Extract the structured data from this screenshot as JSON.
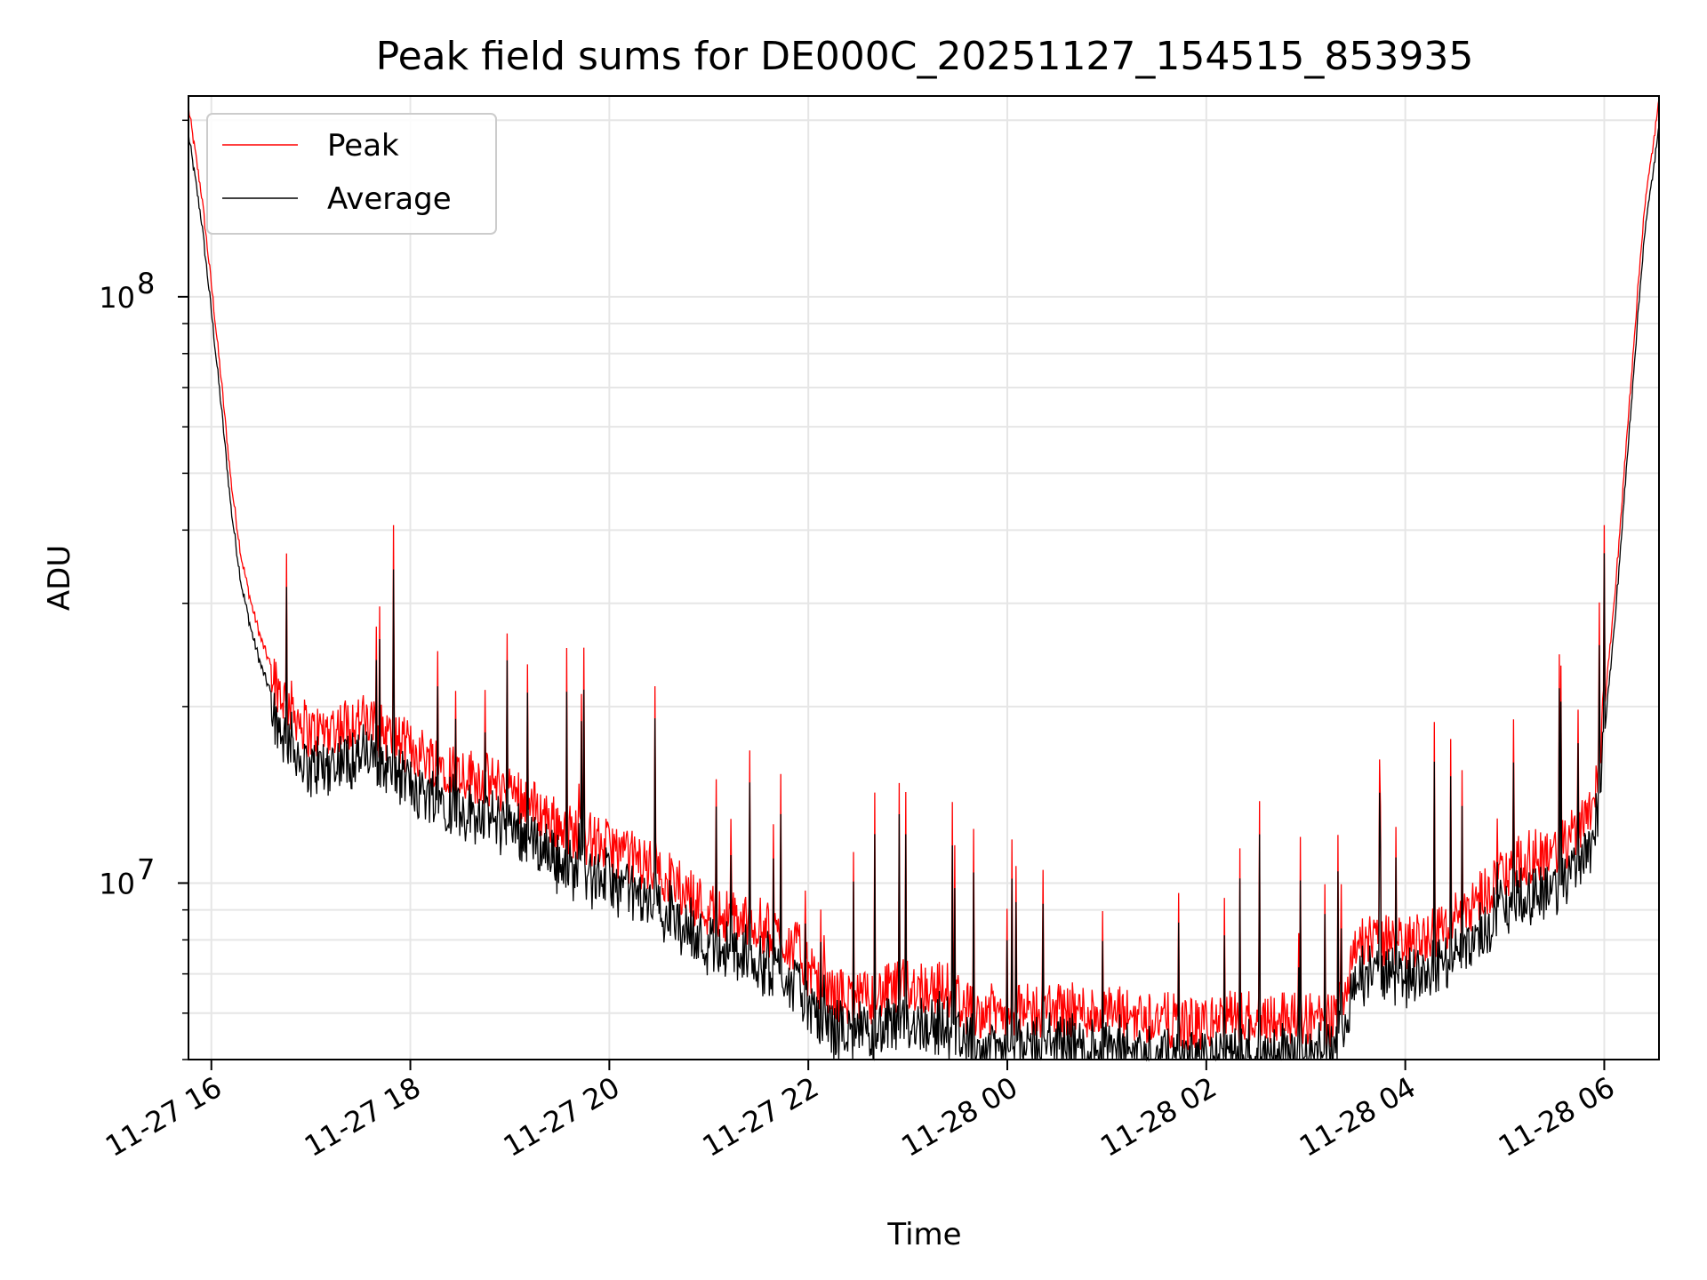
{
  "chart_data": {
    "type": "line",
    "title": "Peak field sums for DE000C_20251127_154515_853935",
    "xlabel": "Time",
    "ylabel": "ADU",
    "yscale": "log",
    "ylim": [
      5000000,
      220000000
    ],
    "x_range_hours": [
      15.77,
      30.55
    ],
    "grid": true,
    "legend_position": "upper-left",
    "colors": {
      "peak": "#ff0000",
      "average": "#000000",
      "grid": "#e6e6e6"
    },
    "x_ticks": [
      {
        "hour": 16,
        "label": "11-27 16"
      },
      {
        "hour": 18,
        "label": "11-27 18"
      },
      {
        "hour": 20,
        "label": "11-27 20"
      },
      {
        "hour": 22,
        "label": "11-27 22"
      },
      {
        "hour": 24,
        "label": "11-28 00"
      },
      {
        "hour": 26,
        "label": "11-28 02"
      },
      {
        "hour": 28,
        "label": "11-28 04"
      },
      {
        "hour": 30,
        "label": "11-28 06"
      }
    ],
    "y_major_ticks": [
      {
        "value": 10000000,
        "base": "10",
        "exp": "7"
      },
      {
        "value": 100000000,
        "base": "10",
        "exp": "8"
      }
    ],
    "series": [
      {
        "name": "Peak",
        "baseline_points": [
          [
            15.77,
            210000000
          ],
          [
            15.9,
            150000000
          ],
          [
            16.0,
            105000000
          ],
          [
            16.1,
            72000000
          ],
          [
            16.2,
            48000000
          ],
          [
            16.3,
            36000000
          ],
          [
            16.4,
            30000000
          ],
          [
            16.5,
            26000000
          ],
          [
            16.7,
            21000000
          ],
          [
            17.0,
            18000000
          ],
          [
            17.5,
            19000000
          ],
          [
            18.0,
            17000000
          ],
          [
            18.5,
            15500000
          ],
          [
            19.0,
            14500000
          ],
          [
            19.5,
            12500000
          ],
          [
            20.0,
            11500000
          ],
          [
            20.5,
            10500000
          ],
          [
            21.0,
            9000000
          ],
          [
            21.5,
            8500000
          ],
          [
            21.9,
            7700000
          ],
          [
            22.1,
            6600000
          ],
          [
            22.5,
            6300000
          ],
          [
            23.0,
            6700000
          ],
          [
            23.4,
            6600000
          ],
          [
            23.6,
            6100000
          ],
          [
            24.0,
            6000000
          ],
          [
            24.5,
            6100000
          ],
          [
            25.0,
            6000000
          ],
          [
            25.5,
            5900000
          ],
          [
            25.9,
            5700000
          ],
          [
            26.2,
            5900000
          ],
          [
            26.8,
            5950000
          ],
          [
            27.3,
            5800000
          ],
          [
            27.5,
            8000000
          ],
          [
            28.0,
            7900000
          ],
          [
            28.4,
            8400000
          ],
          [
            28.8,
            9700000
          ],
          [
            29.2,
            11000000
          ],
          [
            29.6,
            11500000
          ],
          [
            29.9,
            14000000
          ],
          [
            30.0,
            20000000
          ],
          [
            30.1,
            30000000
          ],
          [
            30.2,
            50000000
          ],
          [
            30.3,
            85000000
          ],
          [
            30.4,
            140000000
          ],
          [
            30.55,
            215000000
          ]
        ]
      },
      {
        "name": "Average",
        "offset_ratio": 0.9
      }
    ]
  }
}
